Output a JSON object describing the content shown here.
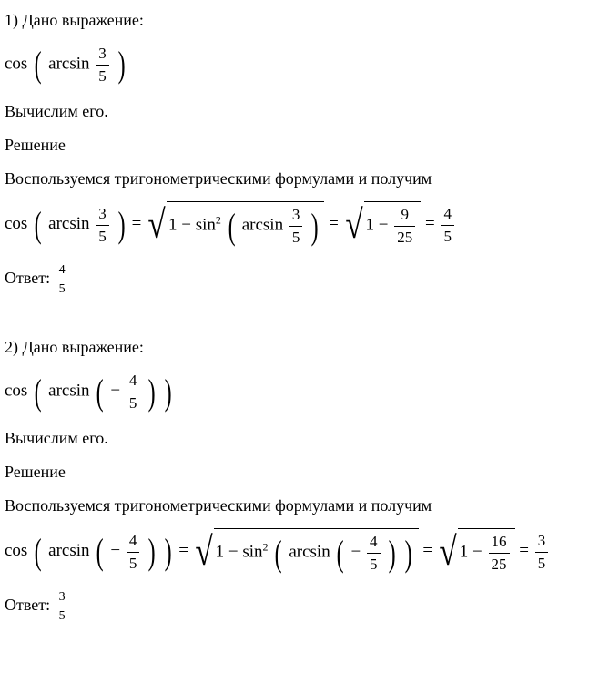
{
  "problem1": {
    "given_label": "1) Дано выражение:",
    "expression": {
      "func": "cos",
      "inner_func": "arcsin",
      "arg_num": "3",
      "arg_den": "5"
    },
    "compute_label": "Вычислим его.",
    "solution_label": "Решение",
    "method_text": "Воспользуемся тригонометрическими формулами и получим",
    "equation": {
      "lhs_func": "cos",
      "lhs_inner": "arcsin",
      "lhs_num": "3",
      "lhs_den": "5",
      "eq": "=",
      "mid_prefix": "1 − sin",
      "mid_sup": "2",
      "mid_inner": "arcsin",
      "mid_num": "3",
      "mid_den": "5",
      "rhs_prefix": "1 −",
      "rhs_num": "9",
      "rhs_den": "25",
      "result_num": "4",
      "result_den": "5"
    },
    "answer_label": "Ответ:",
    "answer_num": "4",
    "answer_den": "5"
  },
  "problem2": {
    "given_label": "2) Дано выражение:",
    "expression": {
      "func": "cos",
      "inner_func": "arcsin",
      "neg": "−",
      "arg_num": "4",
      "arg_den": "5"
    },
    "compute_label": "Вычислим его.",
    "solution_label": "Решение",
    "method_text": "Воспользуемся тригонометрическими формулами и получим",
    "equation": {
      "lhs_func": "cos",
      "lhs_inner": "arcsin",
      "lhs_neg": "−",
      "lhs_num": "4",
      "lhs_den": "5",
      "eq": "=",
      "mid_prefix": "1 − sin",
      "mid_sup": "2",
      "mid_inner": "arcsin",
      "mid_neg": "−",
      "mid_num": "4",
      "mid_den": "5",
      "rhs_prefix": "1 −",
      "rhs_num": "16",
      "rhs_den": "25",
      "result_num": "3",
      "result_den": "5"
    },
    "answer_label": "Ответ:",
    "answer_num": "3",
    "answer_den": "5"
  },
  "colors": {
    "text": "#000000",
    "background": "#ffffff"
  }
}
